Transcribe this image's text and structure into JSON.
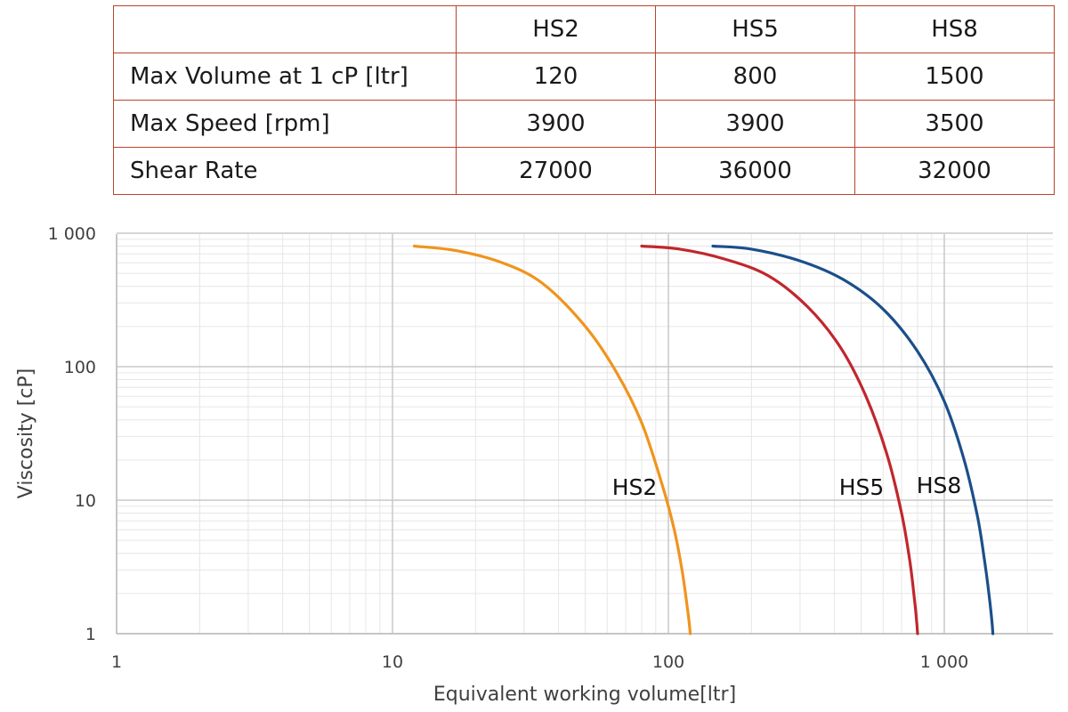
{
  "table": {
    "header": [
      "",
      "HS2",
      "HS5",
      "HS8"
    ],
    "rows": [
      {
        "label": "Max Volume at 1 cP [ltr]",
        "values": [
          "120",
          "800",
          "1500"
        ]
      },
      {
        "label": "Max Speed [rpm]",
        "values": [
          "3900",
          "3900",
          "3500"
        ]
      },
      {
        "label": "Shear Rate",
        "values": [
          "27000",
          "36000",
          "32000"
        ]
      }
    ],
    "border_color": "#b9442c"
  },
  "chart_data": {
    "type": "line",
    "xlabel": "Equivalent working volume[ltr]",
    "ylabel": "Viscosity [cP]",
    "x_scale": "log",
    "y_scale": "log",
    "xlim": [
      1,
      2500
    ],
    "ylim": [
      1,
      1000
    ],
    "x_ticks": [
      {
        "value": 1,
        "label": "1"
      },
      {
        "value": 10,
        "label": "10"
      },
      {
        "value": 100,
        "label": "100"
      },
      {
        "value": 1000,
        "label": "1 000"
      }
    ],
    "y_ticks": [
      {
        "value": 1,
        "label": "1"
      },
      {
        "value": 10,
        "label": "10"
      },
      {
        "value": 100,
        "label": "100"
      },
      {
        "value": 1000,
        "label": "1 000"
      }
    ],
    "grid": true,
    "legend": "none",
    "series": [
      {
        "name": "HS2",
        "color": "#f0941e",
        "x": [
          12,
          17,
          25,
          35,
          50,
          65,
          80,
          95,
          105,
          112,
          117,
          119,
          120
        ],
        "y": [
          800,
          740,
          600,
          420,
          200,
          90,
          38,
          13,
          6,
          3,
          1.6,
          1.2,
          1
        ]
      },
      {
        "name": "HS5",
        "color": "#c0272d",
        "x": [
          80,
          110,
          160,
          230,
          320,
          420,
          520,
          620,
          700,
          750,
          780,
          795,
          800
        ],
        "y": [
          800,
          760,
          640,
          480,
          280,
          140,
          60,
          22,
          8,
          3.5,
          1.8,
          1.2,
          1
        ]
      },
      {
        "name": "HS8",
        "color": "#1b4f8a",
        "x": [
          145,
          200,
          300,
          430,
          600,
          800,
          1000,
          1180,
          1320,
          1400,
          1460,
          1490,
          1500
        ],
        "y": [
          800,
          760,
          620,
          450,
          270,
          130,
          55,
          20,
          7.5,
          3.5,
          1.8,
          1.2,
          1
        ]
      }
    ],
    "annotations": [
      {
        "text": "HS2",
        "series": "HS2"
      },
      {
        "text": "HS5",
        "series": "HS5"
      },
      {
        "text": "HS8",
        "series": "HS8"
      }
    ]
  }
}
